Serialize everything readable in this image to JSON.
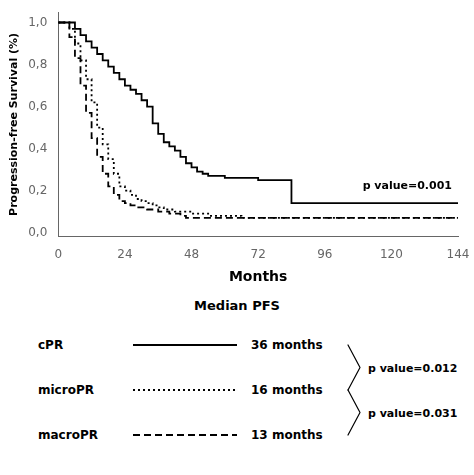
{
  "chart_data": {
    "type": "step",
    "xlabel": "Months",
    "ylabel": "Progression-free Survival (%)",
    "xlim": [
      0,
      144
    ],
    "ylim": [
      -0.02,
      1.05
    ],
    "xticks": [
      0,
      24,
      48,
      72,
      96,
      120,
      144
    ],
    "yticks": [
      {
        "value": 0.0,
        "label": "0,0"
      },
      {
        "value": 0.2,
        "label": "0,2"
      },
      {
        "value": 0.4,
        "label": "0,4"
      },
      {
        "value": 0.6,
        "label": "0,6"
      },
      {
        "value": 0.8,
        "label": "0,8"
      },
      {
        "value": 1.0,
        "label": "1,0"
      }
    ],
    "grid": false,
    "color": "#000000",
    "annotation": "p value=0.001",
    "legend": "bottom",
    "legend_title": "Median PFS",
    "comparisons": [
      "p value=0.012",
      "p value=0.031"
    ],
    "series": [
      {
        "name": "cPR",
        "median": "36 months",
        "line_style": "solid",
        "x": [
          0,
          6,
          8,
          10,
          12,
          14,
          16,
          18,
          20,
          22,
          24,
          26,
          28,
          30,
          32,
          34,
          36,
          38,
          40,
          42,
          44,
          46,
          48,
          50,
          52,
          54,
          60,
          66,
          72,
          74,
          76,
          80,
          84,
          90,
          144
        ],
        "values": [
          1.0,
          1.0,
          0.97,
          0.94,
          0.91,
          0.88,
          0.85,
          0.82,
          0.79,
          0.76,
          0.73,
          0.7,
          0.68,
          0.66,
          0.63,
          0.6,
          0.52,
          0.47,
          0.43,
          0.41,
          0.39,
          0.36,
          0.33,
          0.31,
          0.29,
          0.28,
          0.27,
          0.26,
          0.26,
          0.25,
          0.25,
          0.25,
          0.25,
          0.14,
          0.14
        ]
      },
      {
        "name": "microPR",
        "median": "16 months",
        "line_style": "dotted",
        "x": [
          0,
          4,
          6,
          8,
          10,
          12,
          14,
          16,
          18,
          20,
          22,
          24,
          26,
          28,
          30,
          32,
          34,
          36,
          38,
          40,
          42,
          44,
          46,
          48,
          54,
          60,
          66,
          72,
          78,
          84,
          90,
          96,
          144
        ],
        "values": [
          1.0,
          1.0,
          0.97,
          0.9,
          0.82,
          0.73,
          0.62,
          0.5,
          0.42,
          0.35,
          0.28,
          0.22,
          0.2,
          0.18,
          0.16,
          0.15,
          0.14,
          0.13,
          0.12,
          0.11,
          0.11,
          0.1,
          0.1,
          0.1,
          0.09,
          0.08,
          0.08,
          0.07,
          0.07,
          0.07,
          0.07,
          0.07,
          0.07
        ]
      },
      {
        "name": "macroPR",
        "median": "13 months",
        "line_style": "dashed",
        "x": [
          0,
          4,
          6,
          8,
          10,
          12,
          14,
          16,
          18,
          20,
          22,
          24,
          26,
          28,
          30,
          32,
          34,
          36,
          38,
          40,
          42,
          44,
          46,
          48,
          54,
          60,
          66,
          72,
          84,
          96,
          144
        ],
        "values": [
          1.0,
          1.0,
          0.93,
          0.83,
          0.7,
          0.57,
          0.45,
          0.36,
          0.28,
          0.22,
          0.18,
          0.15,
          0.14,
          0.13,
          0.12,
          0.12,
          0.11,
          0.11,
          0.1,
          0.1,
          0.09,
          0.09,
          0.08,
          0.07,
          0.07,
          0.07,
          0.07,
          0.07,
          0.07,
          0.07,
          0.07
        ]
      }
    ]
  }
}
